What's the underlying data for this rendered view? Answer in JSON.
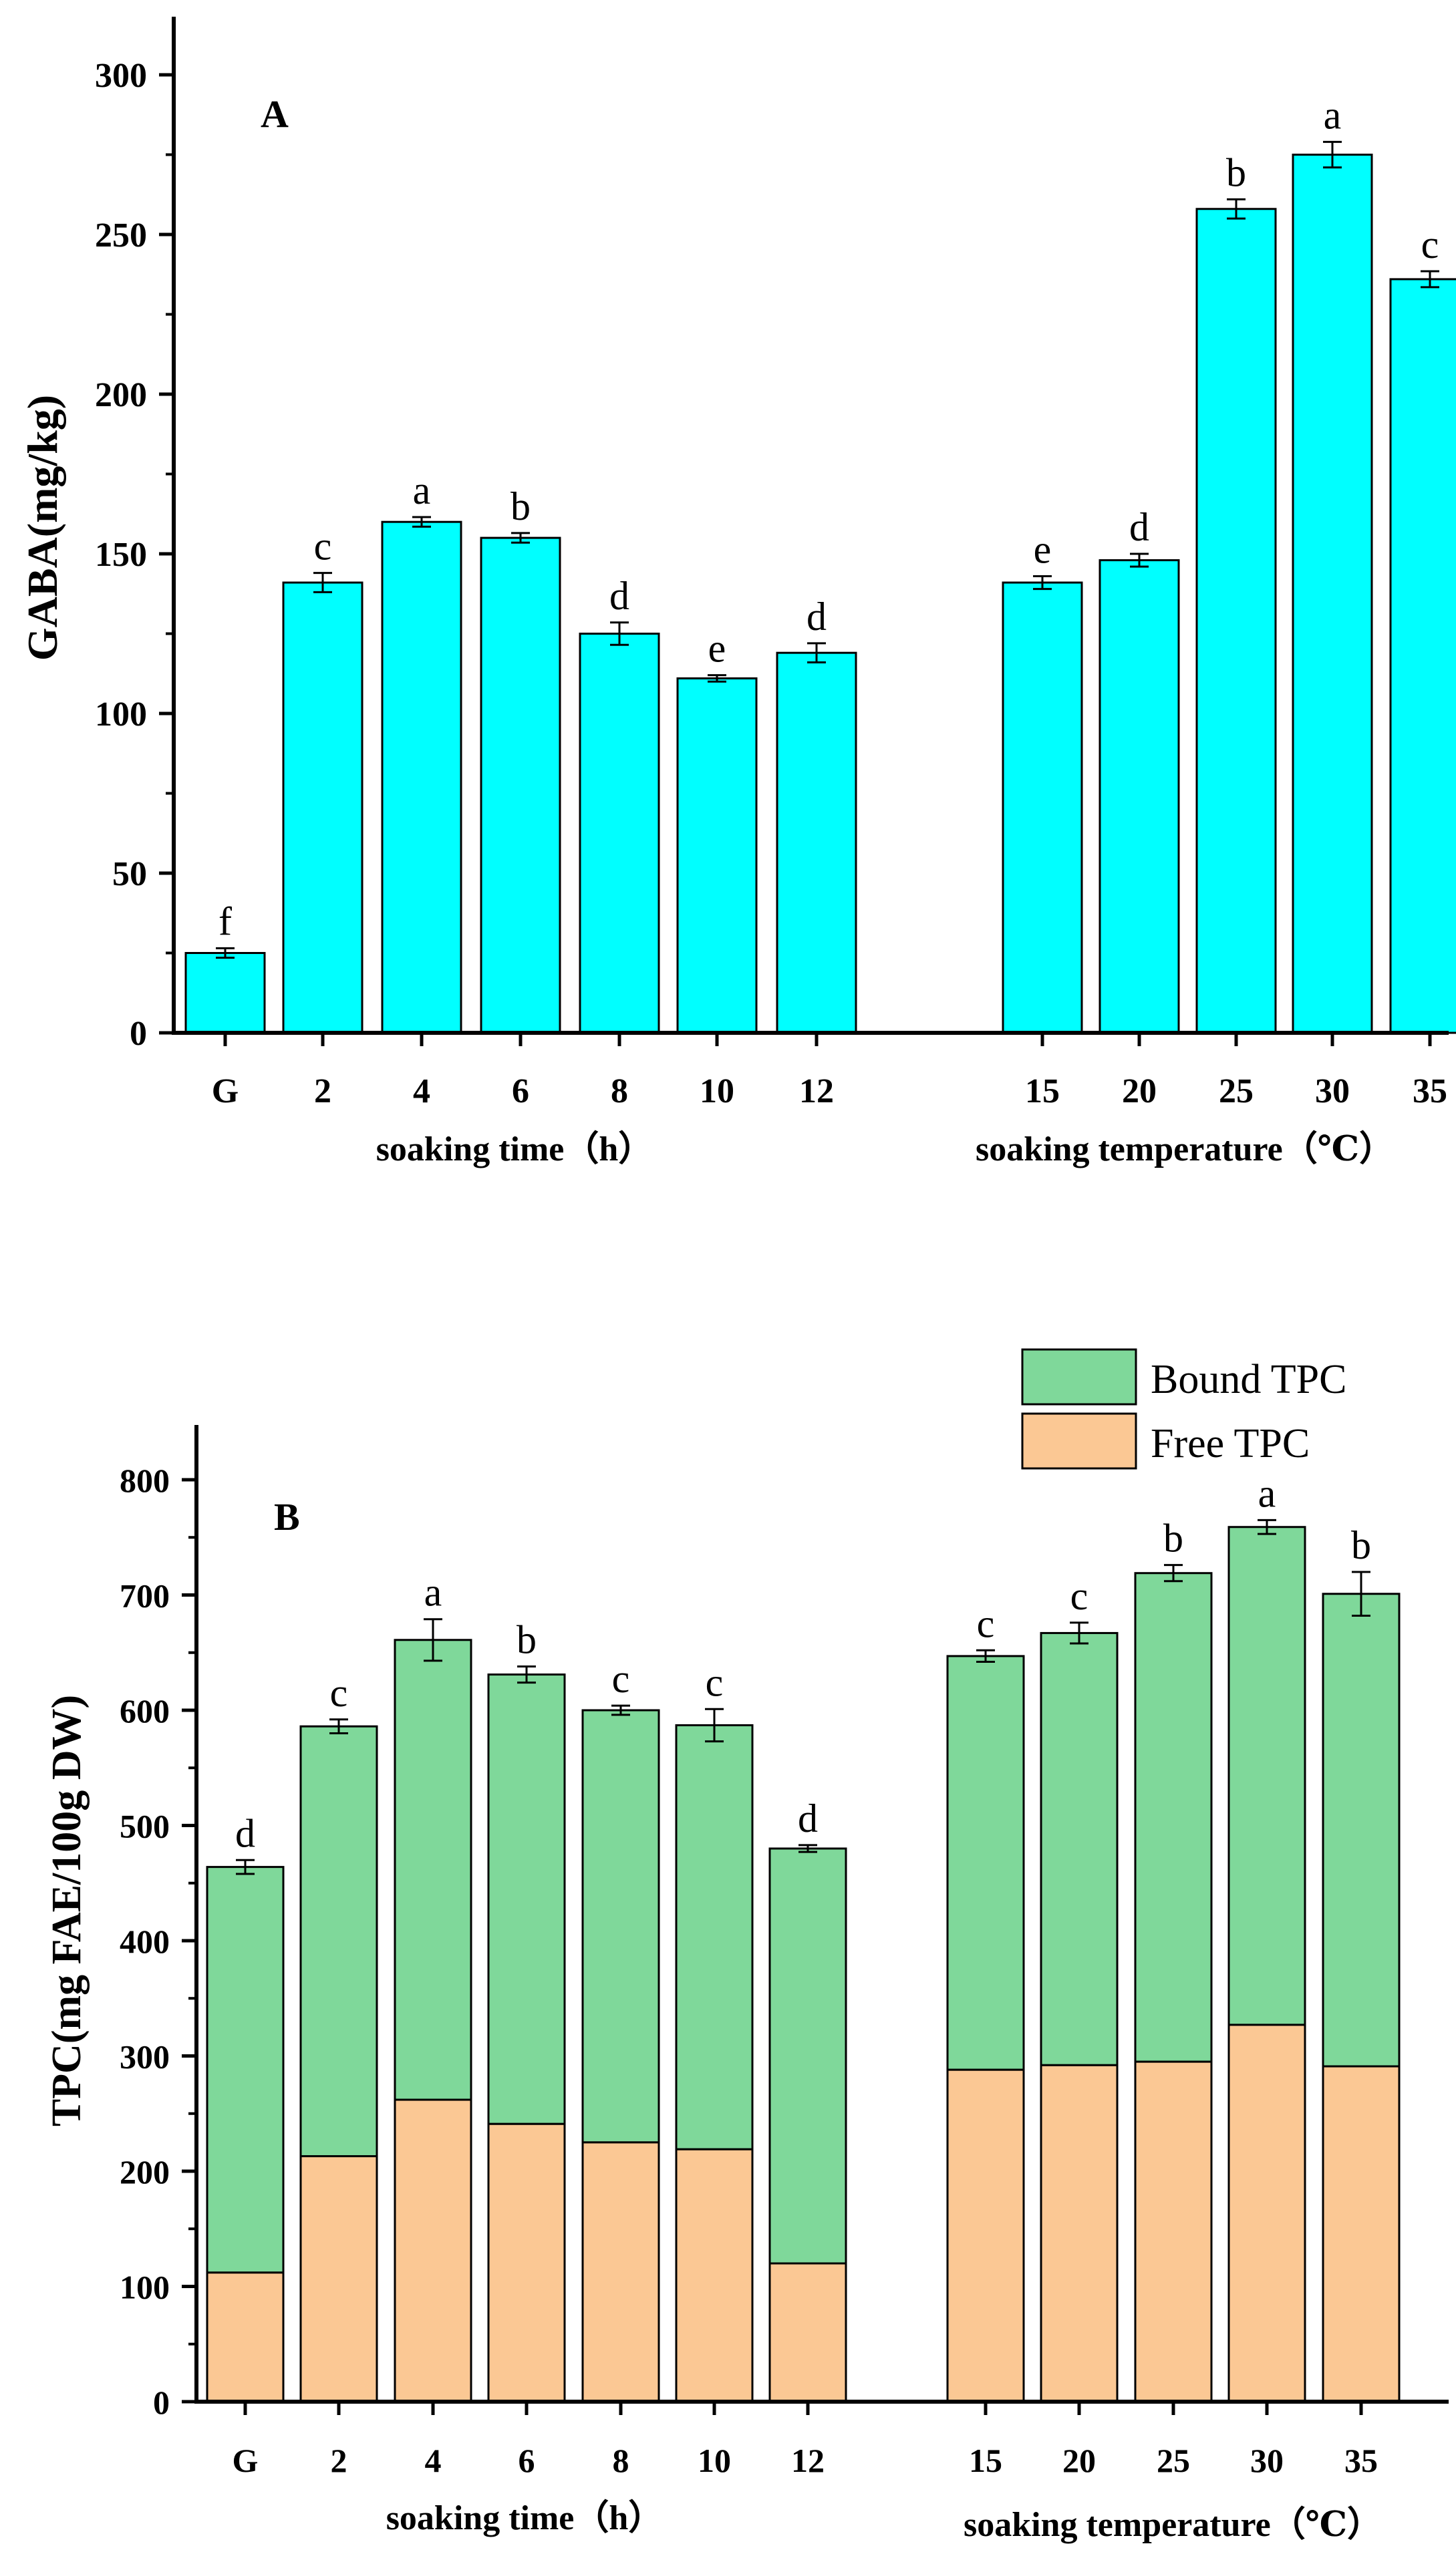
{
  "chart_data": [
    {
      "type": "bar",
      "panel": "A",
      "ylabel": "GABA(mg/kg)",
      "ylim": [
        0,
        325
      ],
      "yticks": [
        0,
        50,
        100,
        150,
        200,
        250,
        300
      ],
      "colors": {
        "bar": "#00FFFF",
        "stroke": "#000000"
      },
      "groups": [
        {
          "xlabel": "soaking time（h）",
          "categories": [
            "G",
            "2",
            "4",
            "6",
            "8",
            "10",
            "12"
          ],
          "values": [
            25,
            141,
            160,
            155,
            125,
            111,
            119
          ],
          "errors": [
            1.5,
            3,
            1.5,
            1.5,
            3.5,
            1,
            3
          ],
          "letters": [
            "f",
            "c",
            "a",
            "b",
            "d",
            "e",
            "d"
          ]
        },
        {
          "xlabel": "soaking temperature（℃）",
          "categories": [
            "15",
            "20",
            "25",
            "30",
            "35"
          ],
          "values": [
            141,
            148,
            258,
            275,
            236
          ],
          "errors": [
            2,
            2,
            3,
            4,
            2.5
          ],
          "letters": [
            "e",
            "d",
            "b",
            "a",
            "c"
          ]
        }
      ]
    },
    {
      "type": "stacked_bar",
      "panel": "B",
      "ylabel": "TPC(mg FAE/100g DW)",
      "ylim": [
        0,
        850
      ],
      "yticks": [
        0,
        100,
        200,
        300,
        400,
        500,
        600,
        700,
        800
      ],
      "series_names": [
        "Free TPC",
        "Bound TPC"
      ],
      "legend": [
        {
          "name": "Bound TPC",
          "color": "#7FD89A"
        },
        {
          "name": "Free TPC",
          "color": "#FBC894"
        }
      ],
      "colors": {
        "free": "#FBC894",
        "bound": "#7FD89A",
        "stroke": "#000000"
      },
      "groups": [
        {
          "xlabel": "soaking time（h）",
          "categories": [
            "G",
            "2",
            "4",
            "6",
            "8",
            "10",
            "12"
          ],
          "free": [
            112,
            213,
            262,
            241,
            225,
            219,
            120
          ],
          "total": [
            464,
            586,
            661,
            631,
            600,
            587,
            480
          ],
          "errors": [
            6,
            6,
            18,
            7,
            4,
            14,
            3
          ],
          "letters": [
            "d",
            "c",
            "a",
            "b",
            "c",
            "c",
            "d"
          ]
        },
        {
          "xlabel": "soaking temperature（℃）",
          "categories": [
            "15",
            "20",
            "25",
            "30",
            "35"
          ],
          "free": [
            288,
            292,
            295,
            327,
            291
          ],
          "total": [
            647,
            667,
            719,
            759,
            701
          ],
          "errors": [
            5,
            9,
            7,
            6,
            19
          ],
          "letters": [
            "c",
            "c",
            "b",
            "a",
            "b"
          ]
        }
      ]
    }
  ]
}
